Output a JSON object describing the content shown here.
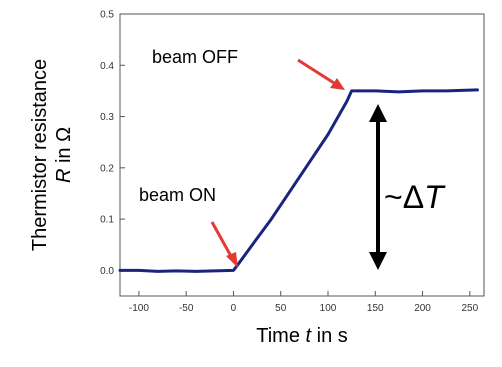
{
  "chart_data": {
    "type": "line",
    "xlabel": "Time t in s",
    "xlabel_prefix": "Time ",
    "xlabel_var": "t",
    "xlabel_suffix": " in s",
    "ylabel_line1": "Thermistor resistance",
    "ylabel_var": "R",
    "ylabel_suffix": " in Ω",
    "xlim": [
      -120,
      265
    ],
    "ylim": [
      -0.05,
      0.5
    ],
    "xticks": [
      -100,
      -50,
      0,
      50,
      100,
      150,
      200,
      250
    ],
    "yticks": [
      0.0,
      0.1,
      0.2,
      0.3,
      0.4,
      0.5
    ],
    "ytick_labels": [
      "0.0",
      "0.1",
      "0.2",
      "0.3",
      "0.4",
      "0.5"
    ],
    "grid": false,
    "series": [
      {
        "color": "#1a237e",
        "x": [
          -120,
          -100,
          -80,
          -60,
          -40,
          -20,
          0,
          5,
          20,
          40,
          60,
          80,
          100,
          120,
          125,
          150,
          175,
          200,
          225,
          258
        ],
        "y": [
          0.0,
          0.0,
          -0.002,
          -0.001,
          -0.002,
          -0.001,
          0.0,
          0.012,
          0.05,
          0.1,
          0.155,
          0.21,
          0.265,
          0.33,
          0.35,
          0.35,
          0.348,
          0.35,
          0.35,
          0.352
        ]
      }
    ],
    "annotations": {
      "beam_on": "beam ON",
      "beam_off": "beam OFF",
      "delta_prefix": "~Δ",
      "delta_var": "T"
    },
    "colors": {
      "arrow_red": "#e53935",
      "arrow_black": "#000000"
    }
  }
}
